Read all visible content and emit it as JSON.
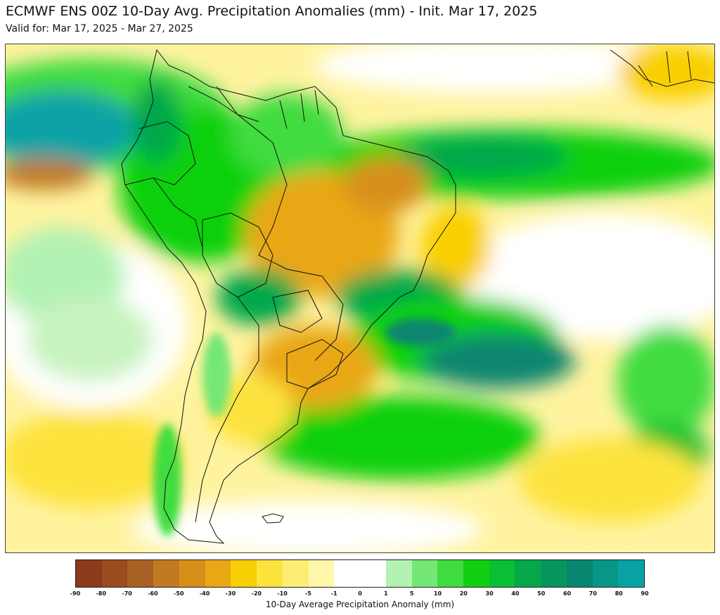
{
  "header": {
    "title": "ECMWF ENS 00Z 10-Day Avg. Precipitation Anomalies (mm) - Init. Mar 17, 2025",
    "subtitle": "Valid for: Mar 17, 2025 - Mar 27, 2025"
  },
  "legend": {
    "label": "10-Day Average Precipitation Anomaly (mm)",
    "ticks": [
      "-90",
      "-80",
      "-70",
      "-60",
      "-50",
      "-40",
      "-30",
      "-20",
      "-10",
      "-5",
      "-1",
      "0",
      "1",
      "5",
      "10",
      "20",
      "30",
      "40",
      "50",
      "60",
      "70",
      "80",
      "90"
    ],
    "colors": [
      "#8b3a1a",
      "#9c4a20",
      "#a86024",
      "#c07a22",
      "#d88f1a",
      "#e9a714",
      "#f9cf05",
      "#fde33e",
      "#fdee73",
      "#fef7aa",
      "#ffffff",
      "#ffffff",
      "#b2f2b3",
      "#75e775",
      "#3fdc3f",
      "#10d010",
      "#0abf33",
      "#06a84a",
      "#06965e",
      "#078670",
      "#089689",
      "#08a3a6",
      "#07aac2"
    ]
  },
  "colors": {
    "dry_strong": "#8b3a1a",
    "dry_moderate": "#d88f1a",
    "dry_light": "#fde33e",
    "near_normal": "#ffffff",
    "wet_light": "#b2f2b3",
    "wet_moderate": "#10d010",
    "wet_strong": "#07aac2",
    "border_line": "#111111"
  }
}
